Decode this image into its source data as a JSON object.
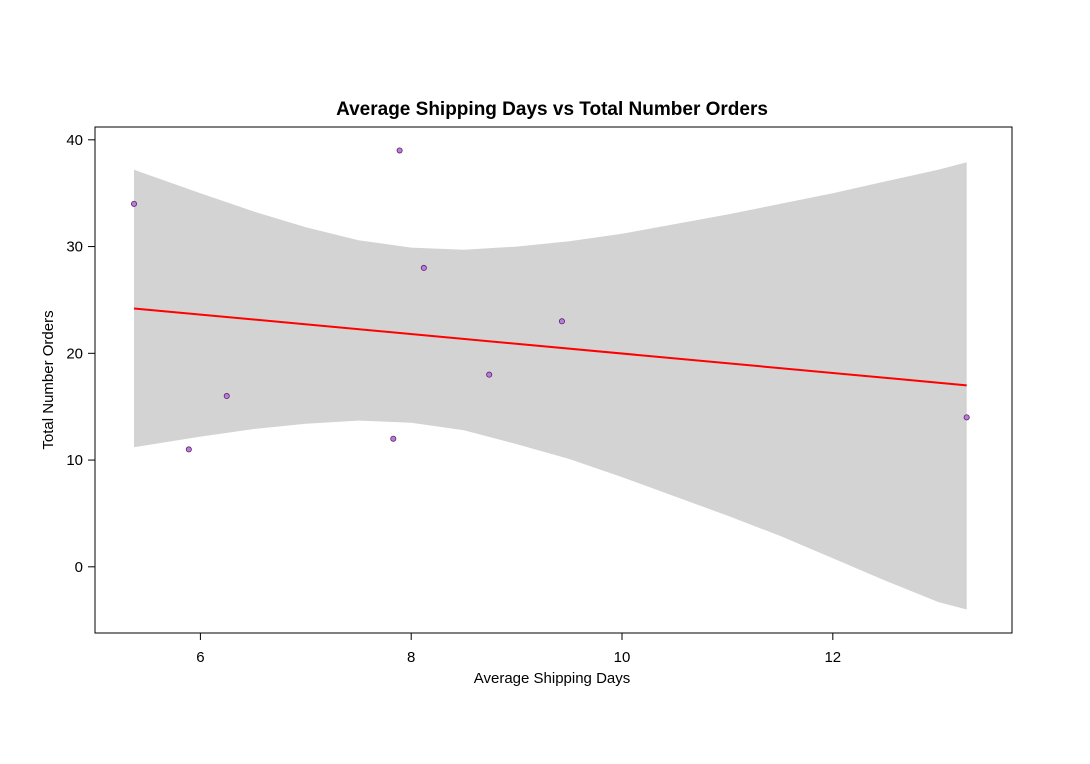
{
  "chart_data": {
    "type": "scatter",
    "title": "Average Shipping Days vs Total Number Orders",
    "xlabel": "Average Shipping Days",
    "ylabel": "Total Number Orders",
    "xlim": [
      5.0,
      13.7
    ],
    "ylim": [
      -6.2,
      41.2
    ],
    "x_ticks": [
      6,
      8,
      10,
      12
    ],
    "y_ticks": [
      0,
      10,
      20,
      30,
      40
    ],
    "points": [
      {
        "x": 5.37,
        "y": 34
      },
      {
        "x": 5.89,
        "y": 11
      },
      {
        "x": 6.25,
        "y": 16
      },
      {
        "x": 7.83,
        "y": 12
      },
      {
        "x": 7.89,
        "y": 39
      },
      {
        "x": 8.12,
        "y": 28
      },
      {
        "x": 8.74,
        "y": 18
      },
      {
        "x": 9.43,
        "y": 23
      },
      {
        "x": 13.27,
        "y": 14
      }
    ],
    "trend_line": {
      "x": [
        5.37,
        13.27
      ],
      "y": [
        24.2,
        17.0
      ]
    },
    "confidence_band": {
      "x": [
        5.37,
        6.0,
        6.5,
        7.0,
        7.5,
        8.0,
        8.5,
        9.0,
        9.5,
        10.0,
        10.5,
        11.0,
        11.5,
        12.0,
        12.5,
        13.0,
        13.27
      ],
      "upper": [
        37.2,
        35.0,
        33.3,
        31.8,
        30.6,
        29.9,
        29.7,
        30.0,
        30.5,
        31.2,
        32.1,
        33.0,
        34.0,
        35.0,
        36.1,
        37.2,
        37.9
      ],
      "lower": [
        11.2,
        12.2,
        12.9,
        13.4,
        13.7,
        13.5,
        12.8,
        11.5,
        10.1,
        8.4,
        6.6,
        4.8,
        2.9,
        0.8,
        -1.3,
        -3.3,
        -4.0
      ]
    },
    "grid": false,
    "colors": {
      "point_fill": "#b97fd6",
      "point_stroke": "#5a1f6e",
      "line": "#ff0000",
      "band": "#d3d3d3"
    }
  }
}
